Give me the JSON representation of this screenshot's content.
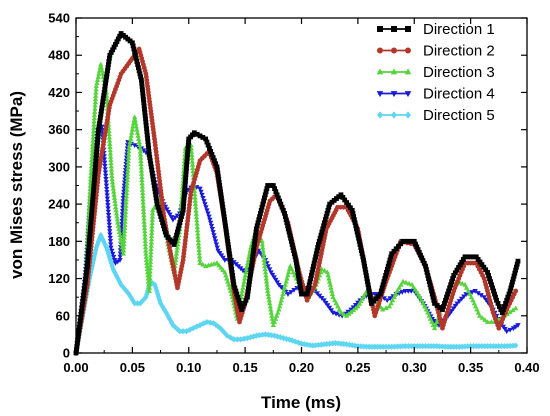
{
  "chart_data": {
    "type": "line",
    "title": "",
    "xlabel": "Time (ms)",
    "ylabel": "von Mises stress (MPa)",
    "xlim": [
      0.0,
      0.4
    ],
    "ylim": [
      0,
      540
    ],
    "xticks": [
      "0.00",
      "0.05",
      "0.10",
      "0.15",
      "0.20",
      "0.25",
      "0.30",
      "0.35",
      "0.40"
    ],
    "yticks": [
      "0",
      "60",
      "120",
      "180",
      "240",
      "300",
      "360",
      "420",
      "480",
      "540"
    ],
    "grid": false,
    "legend_position": "top-right",
    "series": [
      {
        "name": "Direction 1",
        "color": "#000000",
        "marker": "square",
        "points": [
          [
            0.0,
            0
          ],
          [
            0.01,
            140
          ],
          [
            0.02,
            360
          ],
          [
            0.03,
            480
          ],
          [
            0.04,
            515
          ],
          [
            0.05,
            500
          ],
          [
            0.058,
            440
          ],
          [
            0.065,
            320
          ],
          [
            0.072,
            240
          ],
          [
            0.08,
            190
          ],
          [
            0.087,
            175
          ],
          [
            0.095,
            230
          ],
          [
            0.1,
            345
          ],
          [
            0.105,
            355
          ],
          [
            0.115,
            345
          ],
          [
            0.125,
            300
          ],
          [
            0.133,
            200
          ],
          [
            0.14,
            110
          ],
          [
            0.147,
            70
          ],
          [
            0.152,
            90
          ],
          [
            0.16,
            200
          ],
          [
            0.17,
            270
          ],
          [
            0.175,
            270
          ],
          [
            0.185,
            225
          ],
          [
            0.195,
            150
          ],
          [
            0.2,
            95
          ],
          [
            0.205,
            95
          ],
          [
            0.215,
            175
          ],
          [
            0.225,
            240
          ],
          [
            0.235,
            255
          ],
          [
            0.245,
            230
          ],
          [
            0.255,
            150
          ],
          [
            0.262,
            80
          ],
          [
            0.27,
            95
          ],
          [
            0.28,
            160
          ],
          [
            0.29,
            180
          ],
          [
            0.3,
            180
          ],
          [
            0.31,
            140
          ],
          [
            0.318,
            80
          ],
          [
            0.325,
            70
          ],
          [
            0.335,
            125
          ],
          [
            0.345,
            155
          ],
          [
            0.355,
            155
          ],
          [
            0.365,
            130
          ],
          [
            0.373,
            85
          ],
          [
            0.378,
            65
          ],
          [
            0.385,
            100
          ],
          [
            0.392,
            148
          ]
        ]
      },
      {
        "name": "Direction 2",
        "color": "#b3382c",
        "marker": "circle",
        "points": [
          [
            0.0,
            0
          ],
          [
            0.01,
            110
          ],
          [
            0.02,
            290
          ],
          [
            0.03,
            400
          ],
          [
            0.04,
            450
          ],
          [
            0.05,
            475
          ],
          [
            0.056,
            490
          ],
          [
            0.062,
            450
          ],
          [
            0.07,
            340
          ],
          [
            0.078,
            220
          ],
          [
            0.085,
            150
          ],
          [
            0.09,
            105
          ],
          [
            0.095,
            150
          ],
          [
            0.102,
            260
          ],
          [
            0.11,
            310
          ],
          [
            0.118,
            325
          ],
          [
            0.125,
            290
          ],
          [
            0.132,
            210
          ],
          [
            0.14,
            100
          ],
          [
            0.145,
            50
          ],
          [
            0.15,
            80
          ],
          [
            0.16,
            170
          ],
          [
            0.172,
            245
          ],
          [
            0.178,
            255
          ],
          [
            0.188,
            210
          ],
          [
            0.198,
            130
          ],
          [
            0.205,
            85
          ],
          [
            0.212,
            110
          ],
          [
            0.222,
            200
          ],
          [
            0.232,
            235
          ],
          [
            0.24,
            235
          ],
          [
            0.25,
            200
          ],
          [
            0.258,
            120
          ],
          [
            0.265,
            60
          ],
          [
            0.275,
            115
          ],
          [
            0.288,
            180
          ],
          [
            0.3,
            175
          ],
          [
            0.31,
            140
          ],
          [
            0.318,
            90
          ],
          [
            0.325,
            40
          ],
          [
            0.335,
            100
          ],
          [
            0.345,
            145
          ],
          [
            0.355,
            145
          ],
          [
            0.362,
            120
          ],
          [
            0.37,
            65
          ],
          [
            0.375,
            40
          ],
          [
            0.382,
            70
          ],
          [
            0.39,
            100
          ]
        ]
      },
      {
        "name": "Direction 3",
        "color": "#55d43c",
        "marker": "triangle-up",
        "points": [
          [
            0.0,
            0
          ],
          [
            0.008,
            100
          ],
          [
            0.013,
            280
          ],
          [
            0.018,
            430
          ],
          [
            0.022,
            465
          ],
          [
            0.027,
            420
          ],
          [
            0.032,
            280
          ],
          [
            0.037,
            210
          ],
          [
            0.042,
            160
          ],
          [
            0.047,
            330
          ],
          [
            0.052,
            380
          ],
          [
            0.057,
            330
          ],
          [
            0.062,
            160
          ],
          [
            0.065,
            100
          ],
          [
            0.068,
            230
          ],
          [
            0.075,
            250
          ],
          [
            0.082,
            170
          ],
          [
            0.087,
            130
          ],
          [
            0.092,
            200
          ],
          [
            0.097,
            330
          ],
          [
            0.102,
            335
          ],
          [
            0.106,
            240
          ],
          [
            0.11,
            145
          ],
          [
            0.115,
            140
          ],
          [
            0.125,
            145
          ],
          [
            0.132,
            130
          ],
          [
            0.138,
            95
          ],
          [
            0.143,
            55
          ],
          [
            0.147,
            95
          ],
          [
            0.155,
            170
          ],
          [
            0.16,
            200
          ],
          [
            0.165,
            180
          ],
          [
            0.17,
            100
          ],
          [
            0.175,
            45
          ],
          [
            0.18,
            70
          ],
          [
            0.19,
            140
          ],
          [
            0.198,
            110
          ],
          [
            0.205,
            90
          ],
          [
            0.212,
            105
          ],
          [
            0.218,
            135
          ],
          [
            0.223,
            130
          ],
          [
            0.228,
            90
          ],
          [
            0.235,
            65
          ],
          [
            0.24,
            60
          ],
          [
            0.25,
            75
          ],
          [
            0.258,
            100
          ],
          [
            0.265,
            85
          ],
          [
            0.272,
            70
          ],
          [
            0.278,
            75
          ],
          [
            0.285,
            100
          ],
          [
            0.29,
            115
          ],
          [
            0.298,
            110
          ],
          [
            0.305,
            90
          ],
          [
            0.312,
            65
          ],
          [
            0.318,
            40
          ],
          [
            0.322,
            60
          ],
          [
            0.33,
            100
          ],
          [
            0.338,
            115
          ],
          [
            0.345,
            110
          ],
          [
            0.352,
            85
          ],
          [
            0.358,
            60
          ],
          [
            0.365,
            50
          ],
          [
            0.372,
            50
          ],
          [
            0.38,
            60
          ],
          [
            0.39,
            72
          ]
        ]
      },
      {
        "name": "Direction 4",
        "color": "#1a1adb",
        "marker": "triangle-down",
        "points": [
          [
            0.0,
            0
          ],
          [
            0.008,
            120
          ],
          [
            0.014,
            280
          ],
          [
            0.019,
            360
          ],
          [
            0.023,
            365
          ],
          [
            0.027,
            270
          ],
          [
            0.031,
            170
          ],
          [
            0.035,
            145
          ],
          [
            0.039,
            150
          ],
          [
            0.042,
            250
          ],
          [
            0.046,
            340
          ],
          [
            0.052,
            335
          ],
          [
            0.058,
            330
          ],
          [
            0.064,
            320
          ],
          [
            0.07,
            275
          ],
          [
            0.078,
            240
          ],
          [
            0.086,
            215
          ],
          [
            0.092,
            225
          ],
          [
            0.098,
            260
          ],
          [
            0.104,
            270
          ],
          [
            0.11,
            265
          ],
          [
            0.118,
            220
          ],
          [
            0.126,
            165
          ],
          [
            0.132,
            150
          ],
          [
            0.138,
            150
          ],
          [
            0.144,
            140
          ],
          [
            0.15,
            130
          ],
          [
            0.155,
            140
          ],
          [
            0.162,
            165
          ],
          [
            0.168,
            150
          ],
          [
            0.173,
            130
          ],
          [
            0.18,
            110
          ],
          [
            0.188,
            95
          ],
          [
            0.196,
            105
          ],
          [
            0.204,
            105
          ],
          [
            0.212,
            100
          ],
          [
            0.22,
            85
          ],
          [
            0.228,
            65
          ],
          [
            0.236,
            60
          ],
          [
            0.244,
            70
          ],
          [
            0.252,
            85
          ],
          [
            0.26,
            95
          ],
          [
            0.268,
            95
          ],
          [
            0.276,
            85
          ],
          [
            0.284,
            95
          ],
          [
            0.292,
            100
          ],
          [
            0.3,
            100
          ],
          [
            0.308,
            80
          ],
          [
            0.316,
            55
          ],
          [
            0.322,
            45
          ],
          [
            0.33,
            60
          ],
          [
            0.338,
            80
          ],
          [
            0.346,
            95
          ],
          [
            0.354,
            100
          ],
          [
            0.362,
            90
          ],
          [
            0.37,
            70
          ],
          [
            0.376,
            50
          ],
          [
            0.382,
            35
          ],
          [
            0.388,
            40
          ],
          [
            0.392,
            45
          ]
        ]
      },
      {
        "name": "Direction 5",
        "color": "#5ed6f2",
        "marker": "diamond",
        "points": [
          [
            0.0,
            0
          ],
          [
            0.006,
            60
          ],
          [
            0.012,
            120
          ],
          [
            0.018,
            170
          ],
          [
            0.022,
            190
          ],
          [
            0.027,
            170
          ],
          [
            0.033,
            135
          ],
          [
            0.04,
            110
          ],
          [
            0.047,
            95
          ],
          [
            0.052,
            80
          ],
          [
            0.057,
            80
          ],
          [
            0.062,
            90
          ],
          [
            0.066,
            115
          ],
          [
            0.07,
            110
          ],
          [
            0.075,
            80
          ],
          [
            0.08,
            65
          ],
          [
            0.086,
            45
          ],
          [
            0.092,
            35
          ],
          [
            0.098,
            35
          ],
          [
            0.104,
            40
          ],
          [
            0.11,
            45
          ],
          [
            0.116,
            50
          ],
          [
            0.122,
            48
          ],
          [
            0.128,
            40
          ],
          [
            0.134,
            28
          ],
          [
            0.14,
            22
          ],
          [
            0.146,
            22
          ],
          [
            0.152,
            24
          ],
          [
            0.16,
            28
          ],
          [
            0.168,
            30
          ],
          [
            0.176,
            28
          ],
          [
            0.184,
            24
          ],
          [
            0.192,
            20
          ],
          [
            0.2,
            15
          ],
          [
            0.21,
            12
          ],
          [
            0.22,
            14
          ],
          [
            0.23,
            16
          ],
          [
            0.24,
            14
          ],
          [
            0.25,
            11
          ],
          [
            0.26,
            10
          ],
          [
            0.27,
            10
          ],
          [
            0.28,
            10
          ],
          [
            0.29,
            11
          ],
          [
            0.3,
            11
          ],
          [
            0.31,
            11
          ],
          [
            0.32,
            11
          ],
          [
            0.33,
            10
          ],
          [
            0.34,
            10
          ],
          [
            0.35,
            11
          ],
          [
            0.36,
            11
          ],
          [
            0.37,
            11
          ],
          [
            0.38,
            11
          ],
          [
            0.39,
            12
          ]
        ]
      }
    ]
  }
}
